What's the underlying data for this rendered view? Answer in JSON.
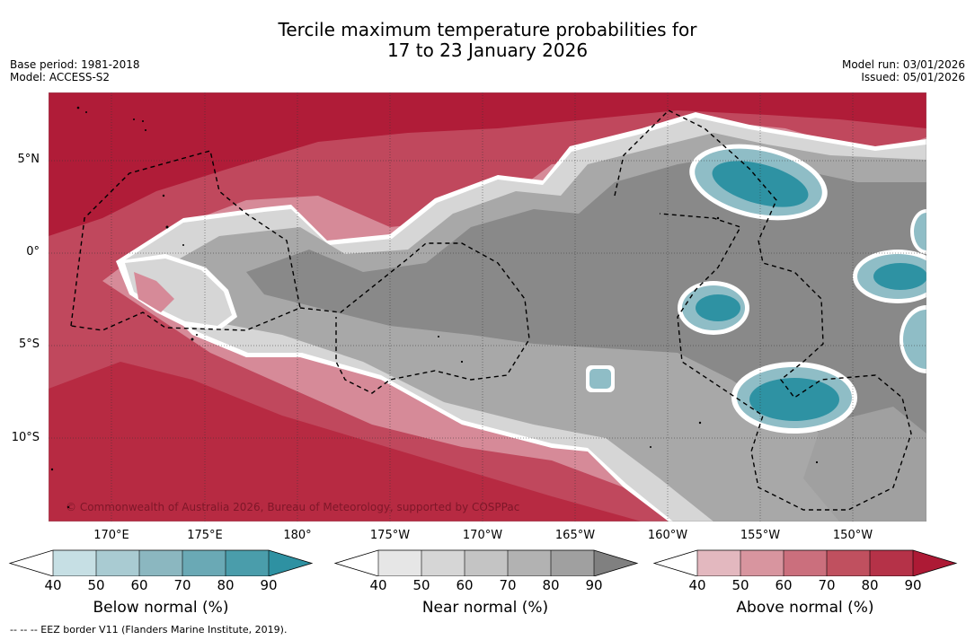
{
  "title": {
    "line1": "Tercile maximum temperature probabilities for",
    "line2": "17 to 23 January 2026"
  },
  "meta_left": {
    "base_period": "Base period: 1981-2018",
    "model": "Model: ACCESS-S2"
  },
  "meta_right": {
    "model_run": "Model run: 03/01/2026",
    "issued": "Issued: 05/01/2026"
  },
  "map": {
    "lat_labels": [
      "5°N",
      "0°",
      "5°S",
      "10°S"
    ],
    "lon_labels": [
      "170°E",
      "175°E",
      "180°",
      "175°W",
      "170°W",
      "165°W",
      "160°W",
      "155°W",
      "150°W"
    ],
    "credit": "© Commonwealth of Australia 2026, Bureau of Meteorology, supported by COSPPac",
    "colors": {
      "above_high": "#b01c38",
      "above_mid": "#c9485f",
      "near_dark": "#8a8a8a",
      "near_mid": "#a8a8a8",
      "near_light": "#d2d2d2",
      "below_dark": "#2e92a3",
      "below_light": "#8fbdc6"
    }
  },
  "colorbars": [
    {
      "title": "Below normal (%)",
      "ticks": [
        "40",
        "50",
        "60",
        "70",
        "80",
        "90"
      ],
      "colors": [
        "#ffffff",
        "#c6dfe4",
        "#a9cbd2",
        "#8bb7c0",
        "#6aa9b5",
        "#4a9dab",
        "#2e91a2"
      ]
    },
    {
      "title": "Near normal (%)",
      "ticks": [
        "40",
        "50",
        "60",
        "70",
        "80",
        "90"
      ],
      "colors": [
        "#ffffff",
        "#e6e6e6",
        "#d6d6d6",
        "#c4c4c4",
        "#b2b2b2",
        "#a0a0a0",
        "#808080"
      ]
    },
    {
      "title": "Above normal (%)",
      "ticks": [
        "40",
        "50",
        "60",
        "70",
        "80",
        "90"
      ],
      "colors": [
        "#ffffff",
        "#e3b8bf",
        "#d8959f",
        "#cb6f7d",
        "#c0505f",
        "#b53248",
        "#ad1a35"
      ]
    }
  ],
  "footnote": "--  --  -- EEZ border V11 (Flanders Marine Institute, 2019)."
}
